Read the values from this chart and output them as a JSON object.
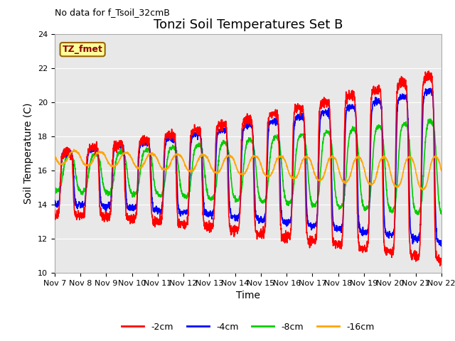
{
  "title": "Tonzi Soil Temperatures Set B",
  "xlabel": "Time",
  "ylabel": "Soil Temperature (C)",
  "annotation_text": "No data for f_Tsoil_32cmB",
  "legend_label_text": "TZ_fmet",
  "legend_entries": [
    "-2cm",
    "-4cm",
    "-8cm",
    "-16cm"
  ],
  "legend_colors": [
    "#ff0000",
    "#0000ff",
    "#00cc00",
    "#ffa500"
  ],
  "line_width": 1.2,
  "ylim": [
    10,
    24
  ],
  "yticks": [
    10,
    12,
    14,
    16,
    18,
    20,
    22,
    24
  ],
  "num_days": 15,
  "plot_bg_color": "#e8e8e8",
  "grid_color": "#ffffff",
  "fig_bg": "#ffffff",
  "title_fontsize": 13,
  "axis_label_fontsize": 10,
  "tick_fontsize": 8,
  "annot_fontsize": 9
}
